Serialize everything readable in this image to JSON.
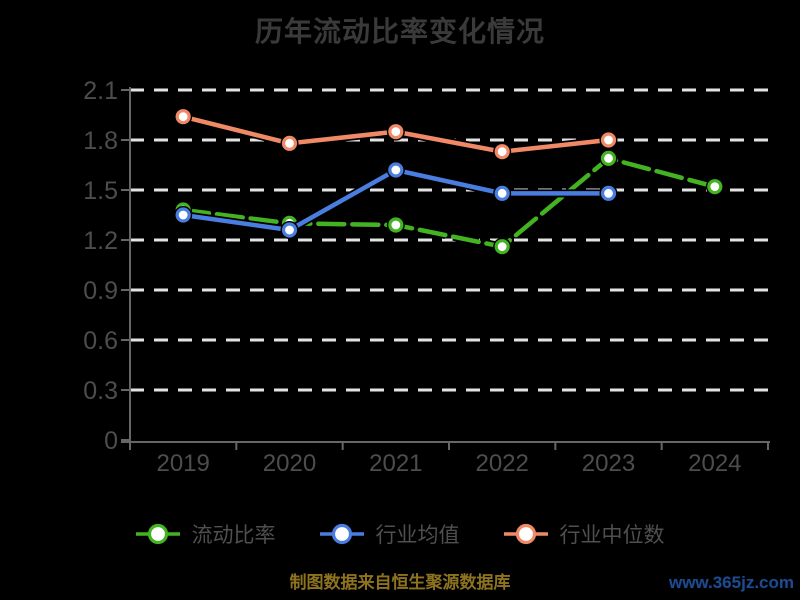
{
  "title": "历年流动比率变化情况",
  "colors": {
    "background": "#000000",
    "title": "#3a3a3a",
    "axis_line": "#666666",
    "tick_label": "#4d4d4d",
    "gridline": "#e3e3e3",
    "legend_label": "#4f4f4f",
    "source_note": "#8e731f",
    "watermark": "#1e4a8f",
    "marker_fill": "#ffffff",
    "series_current_ratio": "#44b321",
    "series_industry_average": "#4a7de0",
    "series_industry_median": "#f08a66"
  },
  "footer": {
    "source_text": "制图数据来自恒生聚源数据库",
    "watermark": "www.365jz.com"
  },
  "chart_data": {
    "type": "line",
    "title": "历年流动比率变化情况",
    "categories": [
      "2019",
      "2020",
      "2021",
      "2022",
      "2023",
      "2024"
    ],
    "series": [
      {
        "name": "流动比率",
        "color": "#44b321",
        "dashed": true,
        "values": [
          1.38,
          1.3,
          1.29,
          1.16,
          1.69,
          1.52
        ]
      },
      {
        "name": "行业均值",
        "color": "#4a7de0",
        "dashed": false,
        "values": [
          1.35,
          1.26,
          1.62,
          1.48,
          1.48,
          null
        ]
      },
      {
        "name": "行业中位数",
        "color": "#f08a66",
        "dashed": false,
        "values": [
          1.94,
          1.78,
          1.85,
          1.73,
          1.8,
          null
        ]
      }
    ],
    "xlabel": "",
    "ylabel": "",
    "ylim": [
      0,
      2.1
    ],
    "yticks": [
      0,
      0.3,
      0.6,
      0.9,
      1.2,
      1.5,
      1.8,
      2.1
    ],
    "grid": "horizontal-dashed",
    "legend_position": "bottom"
  }
}
